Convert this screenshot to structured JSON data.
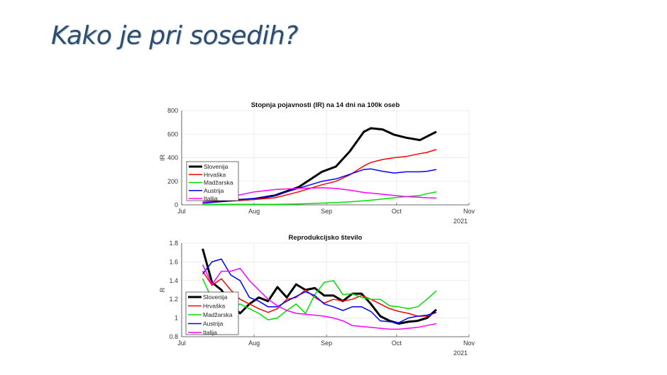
{
  "slide": {
    "title": "Kako je pri sosedih?"
  },
  "chart_data": [
    {
      "type": "line",
      "title": "Stopnja pojavnosti (IR) na 14 dni na 100k oseb",
      "xlabel": "",
      "ylabel": "IR",
      "year_label": "2021",
      "xlim": [
        "2021-07-01",
        "2021-11-01"
      ],
      "xticks": [
        {
          "date": "2021-07-01",
          "label": "Jul"
        },
        {
          "date": "2021-08-01",
          "label": "Aug"
        },
        {
          "date": "2021-09-01",
          "label": "Sep"
        },
        {
          "date": "2021-10-01",
          "label": "Oct"
        },
        {
          "date": "2021-11-01",
          "label": "Nov"
        }
      ],
      "ylim": [
        0,
        800
      ],
      "yticks": [
        0,
        200,
        400,
        600,
        800
      ],
      "grid": true,
      "legend": "lower-left",
      "x": [
        "2021-07-10",
        "2021-07-20",
        "2021-08-01",
        "2021-08-10",
        "2021-08-20",
        "2021-08-30",
        "2021-09-05",
        "2021-09-11",
        "2021-09-17",
        "2021-09-20",
        "2021-09-25",
        "2021-09-30",
        "2021-10-05",
        "2021-10-11",
        "2021-10-14",
        "2021-10-18"
      ],
      "series": [
        {
          "name": "Slovenija",
          "color": "#000000",
          "width": 3,
          "values": [
            20,
            35,
            50,
            80,
            150,
            280,
            325,
            455,
            620,
            650,
            640,
            595,
            570,
            550,
            580,
            620
          ]
        },
        {
          "name": "Hrvaška",
          "color": "#ff0000",
          "width": 1.5,
          "values": [
            25,
            35,
            45,
            60,
            110,
            170,
            200,
            255,
            330,
            360,
            385,
            400,
            410,
            435,
            445,
            470
          ]
        },
        {
          "name": "Madžarska",
          "color": "#00e000",
          "width": 1.5,
          "values": [
            5,
            5,
            5,
            5,
            8,
            15,
            20,
            25,
            35,
            40,
            50,
            60,
            70,
            80,
            95,
            110
          ]
        },
        {
          "name": "Austrija",
          "color": "#0000ff",
          "width": 1.5,
          "values": [
            15,
            35,
            55,
            80,
            140,
            200,
            220,
            260,
            300,
            305,
            285,
            270,
            280,
            280,
            285,
            300
          ]
        },
        {
          "name": "Italija",
          "color": "#ff00ff",
          "width": 1.5,
          "values": [
            20,
            60,
            110,
            130,
            140,
            145,
            140,
            125,
            105,
            100,
            90,
            80,
            70,
            65,
            60,
            58
          ]
        }
      ]
    },
    {
      "type": "line",
      "title": "Reprodukcijsko število",
      "xlabel": "",
      "ylabel": "R",
      "year_label": "2021",
      "xlim": [
        "2021-07-01",
        "2021-11-01"
      ],
      "xticks": [
        {
          "date": "2021-07-01",
          "label": "Jul"
        },
        {
          "date": "2021-08-01",
          "label": "Aug"
        },
        {
          "date": "2021-09-01",
          "label": "Sep"
        },
        {
          "date": "2021-10-01",
          "label": "Oct"
        },
        {
          "date": "2021-11-01",
          "label": "Nov"
        }
      ],
      "ylim": [
        0.8,
        1.8
      ],
      "yticks": [
        "0.8",
        "1",
        "1.2",
        "1.4",
        "1.6",
        "1.8"
      ],
      "grid": true,
      "legend": "lower-left",
      "x": [
        "2021-07-10",
        "2021-07-14",
        "2021-07-18",
        "2021-07-22",
        "2021-07-26",
        "2021-07-30",
        "2021-08-03",
        "2021-08-07",
        "2021-08-11",
        "2021-08-15",
        "2021-08-19",
        "2021-08-23",
        "2021-08-27",
        "2021-08-31",
        "2021-09-04",
        "2021-09-08",
        "2021-09-12",
        "2021-09-16",
        "2021-09-20",
        "2021-09-24",
        "2021-09-28",
        "2021-10-02",
        "2021-10-06",
        "2021-10-10",
        "2021-10-14",
        "2021-10-18"
      ],
      "series": [
        {
          "name": "Slovenija",
          "color": "#000000",
          "width": 3,
          "values": [
            1.74,
            1.38,
            1.3,
            1.15,
            1.05,
            1.15,
            1.22,
            1.18,
            1.33,
            1.22,
            1.36,
            1.3,
            1.32,
            1.24,
            1.24,
            1.18,
            1.26,
            1.26,
            1.15,
            1.02,
            0.97,
            0.94,
            0.96,
            0.97,
            1.0,
            1.09
          ]
        },
        {
          "name": "Hrvaška",
          "color": "#ff0000",
          "width": 1.5,
          "values": [
            1.5,
            1.35,
            1.42,
            1.3,
            1.2,
            1.15,
            1.1,
            1.06,
            1.1,
            1.2,
            1.22,
            1.3,
            1.22,
            1.16,
            1.2,
            1.18,
            1.2,
            1.24,
            1.2,
            1.15,
            1.1,
            1.07,
            1.05,
            1.02,
            1.02,
            1.06
          ]
        },
        {
          "name": "Madžarska",
          "color": "#00e000",
          "width": 1.5,
          "values": [
            1.42,
            1.2,
            1.15,
            1.1,
            1.15,
            1.1,
            1.05,
            0.98,
            1.0,
            1.08,
            1.15,
            1.05,
            1.25,
            1.38,
            1.4,
            1.25,
            1.26,
            1.22,
            1.2,
            1.2,
            1.13,
            1.12,
            1.1,
            1.12,
            1.2,
            1.29
          ]
        },
        {
          "name": "Austrija",
          "color": "#0000ff",
          "width": 1.5,
          "values": [
            1.47,
            1.6,
            1.63,
            1.46,
            1.4,
            1.22,
            1.18,
            1.12,
            1.12,
            1.18,
            1.23,
            1.28,
            1.24,
            1.15,
            1.12,
            1.08,
            1.12,
            1.12,
            1.07,
            0.97,
            0.96,
            0.95,
            1.0,
            1.02,
            1.03,
            1.06
          ]
        },
        {
          "name": "Italija",
          "color": "#ff00ff",
          "width": 1.5,
          "values": [
            1.57,
            1.36,
            1.5,
            1.5,
            1.53,
            1.4,
            1.3,
            1.2,
            1.13,
            1.08,
            1.05,
            1.04,
            1.03,
            1.02,
            1.0,
            0.97,
            0.92,
            0.91,
            0.9,
            0.89,
            0.88,
            0.88,
            0.89,
            0.9,
            0.92,
            0.94
          ]
        }
      ]
    }
  ]
}
